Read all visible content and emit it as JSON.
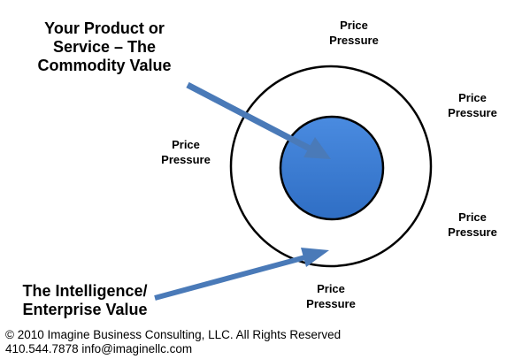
{
  "product_label": {
    "lines": [
      "Your Product or",
      "Service – The",
      "Commodity Value"
    ]
  },
  "intelligence_label": {
    "lines": [
      "The Intelligence/",
      "Enterprise Value"
    ]
  },
  "pressure_labels": {
    "top": [
      "Price",
      "Pressure"
    ],
    "right_upper": [
      "Price",
      "Pressure"
    ],
    "left": [
      "Price",
      "Pressure"
    ],
    "right_lower": [
      "Price",
      "Pressure"
    ],
    "bottom": [
      "Price",
      "Pressure"
    ]
  },
  "footer": {
    "copyright": "© 2010 Imagine Business Consulting, LLC. All Rights Reserved",
    "contact": "410.544.7878 info@imaginellc.com"
  },
  "colors": {
    "inner_circle": "#3A7BD5",
    "arrow": "#4A7AB8",
    "outline": "#000000"
  }
}
